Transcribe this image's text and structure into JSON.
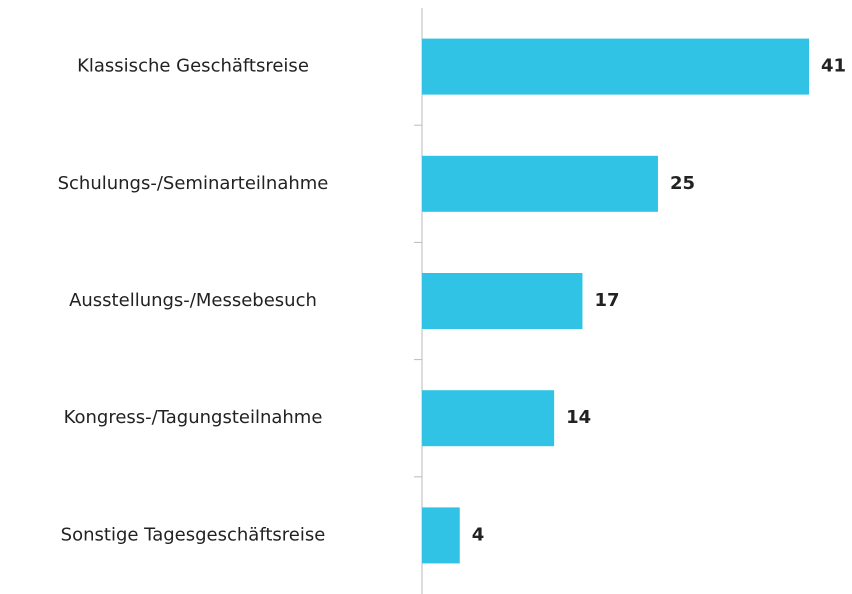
{
  "chart_data": {
    "type": "barh",
    "categories": [
      "Klassische Geschäftsreise",
      "Schulungs-/Seminarteilnahme",
      "Ausstellungs-/Messebesuch",
      "Kongress-/Tagungsteilnahme",
      "Sonstige Tagesgeschäftsreise"
    ],
    "values": [
      41,
      25,
      17,
      14,
      4
    ],
    "color": "#31c3e5"
  }
}
